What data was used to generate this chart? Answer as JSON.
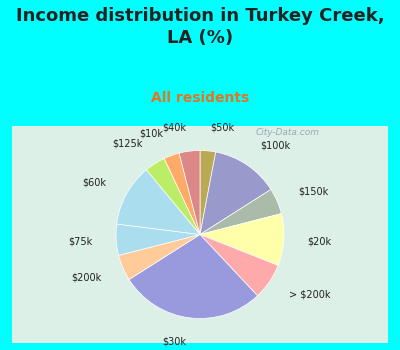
{
  "title": "Income distribution in Turkey Creek,\nLA (%)",
  "subtitle": "All residents",
  "labels": [
    "$100k",
    "$150k",
    "$20k",
    "> $200k",
    "$30k",
    "$200k",
    "$75k",
    "$60k",
    "$125k",
    "$10k",
    "$40k",
    "$50k"
  ],
  "sizes": [
    13,
    5,
    10,
    7,
    28,
    5,
    6,
    12,
    4,
    3,
    4,
    3
  ],
  "colors": [
    "#9999cc",
    "#aaccaa",
    "#ffffaa",
    "#ffaaaa",
    "#aaaadd",
    "#ffcc99",
    "#aaccee",
    "#bbee77",
    "#ccddaa",
    "#ffbb77",
    "#dd9999",
    "#ccbb66"
  ],
  "title_fontsize": 13,
  "subtitle_fontsize": 10,
  "subtitle_color": "#dd7722",
  "title_color": "#222222",
  "bg_color_top": "#00ffff",
  "bg_color_chart_top": "#e0f0f0",
  "bg_color_chart_bottom": "#d0eedd",
  "watermark": "City-Data.com",
  "label_fontsize": 7
}
